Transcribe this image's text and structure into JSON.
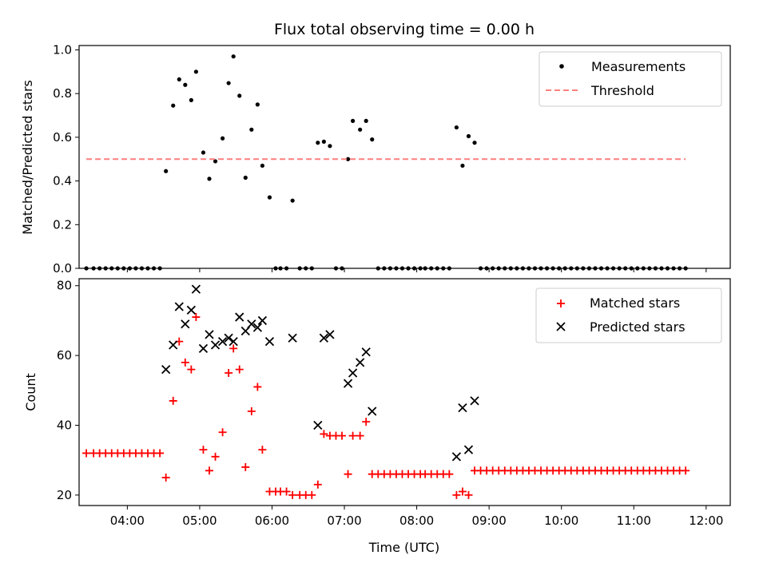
{
  "chart_data": [
    {
      "type": "scatter",
      "title": "Flux total observing time = 0.00 h",
      "xlabel": "",
      "ylabel": "Matched/Predicted stars",
      "ylim": [
        0,
        1.02
      ],
      "yticks": [
        "0.0",
        "0.2",
        "0.4",
        "0.6",
        "0.8",
        "1.0"
      ],
      "legend_position": "top-right",
      "series": [
        {
          "name": "Measurements",
          "kind": "dots",
          "color": "#000000",
          "points": [
            [
              "03:26",
              0
            ],
            [
              "03:32",
              0
            ],
            [
              "03:37",
              0
            ],
            [
              "03:42",
              0
            ],
            [
              "03:47",
              0
            ],
            [
              "03:52",
              0
            ],
            [
              "03:57",
              0
            ],
            [
              "04:02",
              0
            ],
            [
              "04:07",
              0
            ],
            [
              "04:12",
              0
            ],
            [
              "04:17",
              0
            ],
            [
              "04:22",
              0
            ],
            [
              "04:27",
              0
            ],
            [
              "04:32",
              0.445
            ],
            [
              "04:38",
              0.745
            ],
            [
              "04:43",
              0.865
            ],
            [
              "04:48",
              0.84
            ],
            [
              "04:53",
              0.77
            ],
            [
              "04:57",
              0.9
            ],
            [
              "05:03",
              0.53
            ],
            [
              "05:08",
              0.41
            ],
            [
              "05:13",
              0.49
            ],
            [
              "05:19",
              0.595
            ],
            [
              "05:24",
              0.848
            ],
            [
              "05:28",
              0.97
            ],
            [
              "05:33",
              0.79
            ],
            [
              "05:38",
              0.415
            ],
            [
              "05:43",
              0.635
            ],
            [
              "05:48",
              0.75
            ],
            [
              "05:52",
              0.47
            ],
            [
              "05:58",
              0.325
            ],
            [
              "06:03",
              0
            ],
            [
              "06:07",
              0
            ],
            [
              "06:12",
              0
            ],
            [
              "06:17",
              0.31
            ],
            [
              "06:23",
              0
            ],
            [
              "06:28",
              0
            ],
            [
              "06:33",
              0
            ],
            [
              "06:38",
              0.575
            ],
            [
              "06:43",
              0.58
            ],
            [
              "06:48",
              0.56
            ],
            [
              "06:53",
              0
            ],
            [
              "06:58",
              0
            ],
            [
              "07:03",
              0.5
            ],
            [
              "07:07",
              0.675
            ],
            [
              "07:13",
              0.635
            ],
            [
              "07:18",
              0.675
            ],
            [
              "07:23",
              0.59
            ],
            [
              "07:28",
              0
            ],
            [
              "07:33",
              0
            ],
            [
              "07:38",
              0
            ],
            [
              "07:43",
              0
            ],
            [
              "07:48",
              0
            ],
            [
              "07:53",
              0
            ],
            [
              "07:58",
              0
            ],
            [
              "08:03",
              0
            ],
            [
              "08:07",
              0
            ],
            [
              "08:12",
              0
            ],
            [
              "08:17",
              0
            ],
            [
              "08:22",
              0
            ],
            [
              "08:27",
              0
            ],
            [
              "08:33",
              0.645
            ],
            [
              "08:38",
              0.47
            ],
            [
              "08:43",
              0.605
            ],
            [
              "08:48",
              0.575
            ],
            [
              "08:53",
              0
            ],
            [
              "08:58",
              0
            ],
            [
              "09:03",
              0
            ],
            [
              "09:08",
              0
            ],
            [
              "09:13",
              0
            ],
            [
              "09:18",
              0
            ],
            [
              "09:23",
              0
            ],
            [
              "09:28",
              0
            ],
            [
              "09:33",
              0
            ],
            [
              "09:38",
              0
            ],
            [
              "09:43",
              0
            ],
            [
              "09:48",
              0
            ],
            [
              "09:53",
              0
            ],
            [
              "09:58",
              0
            ],
            [
              "10:03",
              0
            ],
            [
              "10:08",
              0
            ],
            [
              "10:13",
              0
            ],
            [
              "10:18",
              0
            ],
            [
              "10:23",
              0
            ],
            [
              "10:28",
              0
            ],
            [
              "10:33",
              0
            ],
            [
              "10:38",
              0
            ],
            [
              "10:43",
              0
            ],
            [
              "10:48",
              0
            ],
            [
              "10:53",
              0
            ],
            [
              "10:58",
              0
            ],
            [
              "11:03",
              0
            ],
            [
              "11:08",
              0
            ],
            [
              "11:13",
              0
            ],
            [
              "11:18",
              0
            ],
            [
              "11:23",
              0
            ],
            [
              "11:28",
              0
            ],
            [
              "11:33",
              0
            ],
            [
              "11:38",
              0
            ],
            [
              "11:43",
              0
            ]
          ]
        },
        {
          "name": "Threshold",
          "kind": "dashed-line",
          "color": "#ff7f7f",
          "points": [
            [
              "03:26",
              0.5
            ],
            [
              "11:43",
              0.5
            ]
          ]
        }
      ]
    },
    {
      "type": "scatter",
      "title": "",
      "xlabel": "Time (UTC)",
      "ylabel": "Count",
      "ylim": [
        17,
        82
      ],
      "yticks": [
        "20",
        "40",
        "60",
        "80"
      ],
      "xticks": [
        "04:00",
        "05:00",
        "06:00",
        "07:00",
        "08:00",
        "09:00",
        "10:00",
        "11:00",
        "12:00"
      ],
      "legend_position": "top-right",
      "series": [
        {
          "name": "Matched stars",
          "kind": "plus",
          "color": "#ff0000",
          "points": [
            [
              "03:26",
              32
            ],
            [
              "03:32",
              32
            ],
            [
              "03:37",
              32
            ],
            [
              "03:42",
              32
            ],
            [
              "03:47",
              32
            ],
            [
              "03:52",
              32
            ],
            [
              "03:57",
              32
            ],
            [
              "04:02",
              32
            ],
            [
              "04:07",
              32
            ],
            [
              "04:12",
              32
            ],
            [
              "04:17",
              32
            ],
            [
              "04:22",
              32
            ],
            [
              "04:27",
              32
            ],
            [
              "04:32",
              25
            ],
            [
              "04:38",
              47
            ],
            [
              "04:43",
              64
            ],
            [
              "04:48",
              58
            ],
            [
              "04:53",
              56
            ],
            [
              "04:57",
              71
            ],
            [
              "05:03",
              33
            ],
            [
              "05:08",
              27
            ],
            [
              "05:13",
              31
            ],
            [
              "05:19",
              38
            ],
            [
              "05:24",
              55
            ],
            [
              "05:28",
              62
            ],
            [
              "05:33",
              56
            ],
            [
              "05:38",
              28
            ],
            [
              "05:43",
              44
            ],
            [
              "05:48",
              51
            ],
            [
              "05:52",
              33
            ],
            [
              "05:58",
              21
            ],
            [
              "06:03",
              21
            ],
            [
              "06:07",
              21
            ],
            [
              "06:12",
              21
            ],
            [
              "06:17",
              20
            ],
            [
              "06:23",
              20
            ],
            [
              "06:28",
              20
            ],
            [
              "06:33",
              20
            ],
            [
              "06:38",
              23
            ],
            [
              "06:43",
              37.5
            ],
            [
              "06:48",
              37
            ],
            [
              "06:53",
              37
            ],
            [
              "06:58",
              37
            ],
            [
              "07:03",
              26
            ],
            [
              "07:07",
              37
            ],
            [
              "07:13",
              37
            ],
            [
              "07:18",
              41
            ],
            [
              "07:23",
              26
            ],
            [
              "07:28",
              26
            ],
            [
              "07:33",
              26
            ],
            [
              "07:38",
              26
            ],
            [
              "07:43",
              26
            ],
            [
              "07:48",
              26
            ],
            [
              "07:53",
              26
            ],
            [
              "07:58",
              26
            ],
            [
              "08:03",
              26
            ],
            [
              "08:07",
              26
            ],
            [
              "08:12",
              26
            ],
            [
              "08:17",
              26
            ],
            [
              "08:22",
              26
            ],
            [
              "08:27",
              26
            ],
            [
              "08:33",
              20
            ],
            [
              "08:38",
              21
            ],
            [
              "08:43",
              20
            ],
            [
              "08:48",
              27
            ],
            [
              "08:53",
              27
            ],
            [
              "08:58",
              27
            ],
            [
              "09:03",
              27
            ],
            [
              "09:08",
              27
            ],
            [
              "09:13",
              27
            ],
            [
              "09:18",
              27
            ],
            [
              "09:23",
              27
            ],
            [
              "09:28",
              27
            ],
            [
              "09:33",
              27
            ],
            [
              "09:38",
              27
            ],
            [
              "09:43",
              27
            ],
            [
              "09:48",
              27
            ],
            [
              "09:53",
              27
            ],
            [
              "09:58",
              27
            ],
            [
              "10:03",
              27
            ],
            [
              "10:08",
              27
            ],
            [
              "10:13",
              27
            ],
            [
              "10:18",
              27
            ],
            [
              "10:23",
              27
            ],
            [
              "10:28",
              27
            ],
            [
              "10:33",
              27
            ],
            [
              "10:38",
              27
            ],
            [
              "10:43",
              27
            ],
            [
              "10:48",
              27
            ],
            [
              "10:53",
              27
            ],
            [
              "10:58",
              27
            ],
            [
              "11:03",
              27
            ],
            [
              "11:08",
              27
            ],
            [
              "11:13",
              27
            ],
            [
              "11:18",
              27
            ],
            [
              "11:23",
              27
            ],
            [
              "11:28",
              27
            ],
            [
              "11:33",
              27
            ],
            [
              "11:38",
              27
            ],
            [
              "11:43",
              27
            ]
          ]
        },
        {
          "name": "Predicted stars",
          "kind": "x",
          "color": "#000000",
          "points": [
            [
              "04:32",
              56
            ],
            [
              "04:38",
              63
            ],
            [
              "04:43",
              74
            ],
            [
              "04:48",
              69
            ],
            [
              "04:53",
              73
            ],
            [
              "04:57",
              79
            ],
            [
              "05:03",
              62
            ],
            [
              "05:08",
              66
            ],
            [
              "05:13",
              63
            ],
            [
              "05:19",
              64
            ],
            [
              "05:24",
              65
            ],
            [
              "05:28",
              64
            ],
            [
              "05:33",
              71
            ],
            [
              "05:38",
              67
            ],
            [
              "05:43",
              69
            ],
            [
              "05:48",
              68
            ],
            [
              "05:52",
              70
            ],
            [
              "05:58",
              64
            ],
            [
              "06:17",
              65
            ],
            [
              "06:38",
              40
            ],
            [
              "06:43",
              65
            ],
            [
              "06:48",
              66
            ],
            [
              "07:03",
              52
            ],
            [
              "07:07",
              55
            ],
            [
              "07:13",
              58
            ],
            [
              "07:18",
              61
            ],
            [
              "07:23",
              44
            ],
            [
              "08:33",
              31
            ],
            [
              "08:38",
              45
            ],
            [
              "08:43",
              33
            ],
            [
              "08:48",
              47
            ]
          ]
        }
      ]
    }
  ]
}
